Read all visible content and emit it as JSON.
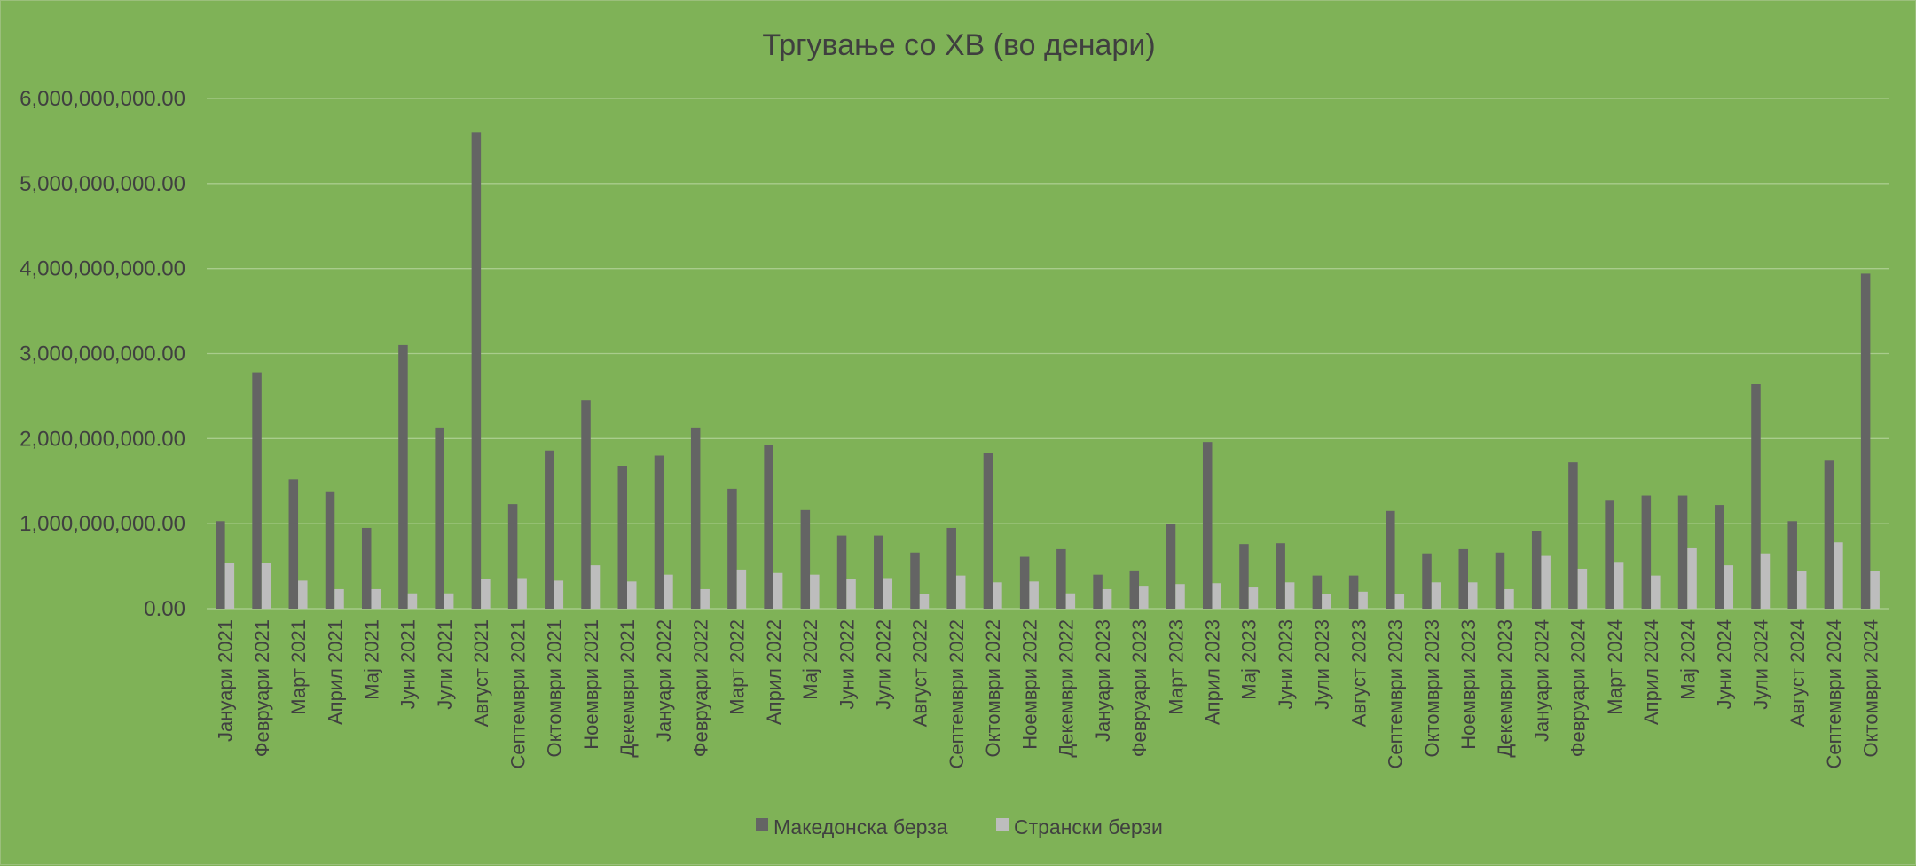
{
  "chart_data": {
    "type": "bar",
    "title": "Тргување со ХВ (во денари)",
    "xlabel": "",
    "ylabel": "",
    "ylim": [
      0,
      6000000000
    ],
    "y_ticks": [
      "0.00",
      "1,000,000,000.00",
      "2,000,000,000.00",
      "3,000,000,000.00",
      "4,000,000,000.00",
      "5,000,000,000.00",
      "6,000,000,000.00"
    ],
    "grid": true,
    "legend_position": "bottom",
    "categories": [
      "Јануари 2021",
      "Февруари 2021",
      "Март 2021",
      "Април 2021",
      "Мај 2021",
      "Јуни 2021",
      "Јули 2021",
      "Август 2021",
      "Септември 2021",
      "Октомври 2021",
      "Ноември 2021",
      "Декември 2021",
      "Јануари 2022",
      "Февруари 2022",
      "Март 2022",
      "Април 2022",
      "Мај 2022",
      "Јуни 2022",
      "Јули 2022",
      "Август 2022",
      "Септември 2022",
      "Октомври 2022",
      "Ноември 2022",
      "Декември 2022",
      "Јануари 2023",
      "Февруари 2023",
      "Март 2023",
      "Април 2023",
      "Мај 2023",
      "Јуни 2023",
      "Јули 2023",
      "Август 2023",
      "Септември 2023",
      "Октомври 2023",
      "Ноември 2023",
      "Декември 2023",
      "Јануари 2024",
      "Февруари 2024",
      "Март 2024",
      "Април 2024",
      "Мај 2024",
      "Јуни 2024",
      "Јули 2024",
      "Август 2024",
      "Септември 2024",
      "Октомври 2024"
    ],
    "series": [
      {
        "name": "Македонска берза",
        "color": "#646464",
        "values": [
          1030000000,
          2780000000,
          1520000000,
          1380000000,
          950000000,
          3100000000,
          2130000000,
          5600000000,
          1230000000,
          1860000000,
          2450000000,
          1680000000,
          1800000000,
          2130000000,
          1410000000,
          1930000000,
          1160000000,
          860000000,
          860000000,
          660000000,
          950000000,
          1830000000,
          610000000,
          700000000,
          400000000,
          450000000,
          1000000000,
          1960000000,
          760000000,
          770000000,
          390000000,
          390000000,
          1150000000,
          650000000,
          700000000,
          660000000,
          910000000,
          1720000000,
          1270000000,
          1330000000,
          1330000000,
          1220000000,
          2640000000,
          1030000000,
          1750000000,
          3940000000
        ]
      },
      {
        "name": "Странски берзи",
        "color": "#bdbdbd",
        "values": [
          540000000,
          540000000,
          330000000,
          230000000,
          230000000,
          180000000,
          180000000,
          350000000,
          360000000,
          330000000,
          510000000,
          320000000,
          400000000,
          230000000,
          460000000,
          420000000,
          400000000,
          350000000,
          360000000,
          170000000,
          390000000,
          310000000,
          320000000,
          180000000,
          230000000,
          270000000,
          290000000,
          300000000,
          250000000,
          310000000,
          170000000,
          200000000,
          170000000,
          310000000,
          310000000,
          230000000,
          620000000,
          470000000,
          550000000,
          390000000,
          710000000,
          510000000,
          650000000,
          440000000,
          780000000,
          440000000
        ]
      }
    ]
  },
  "colors": {
    "background": "#7fb257",
    "grid": "#a9cc8c",
    "text": "#404040"
  }
}
